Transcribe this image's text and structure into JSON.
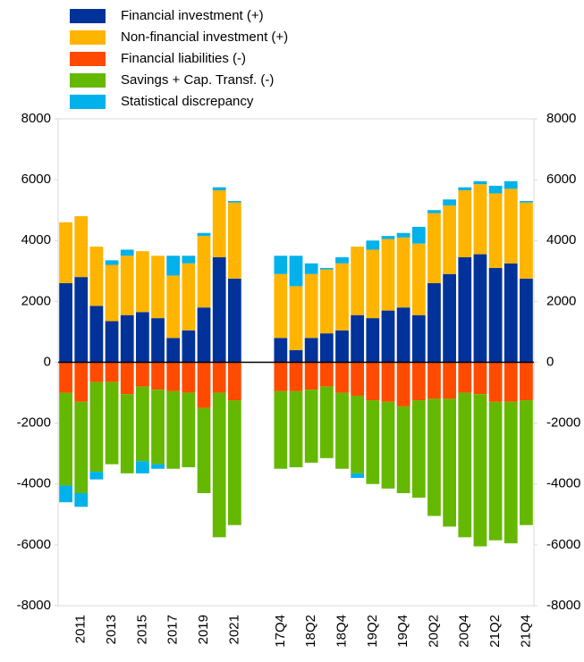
{
  "chart_data": {
    "type": "stacked_bar",
    "categories": [
      null,
      "2011",
      null,
      "2013",
      null,
      "2015",
      null,
      "2017",
      null,
      "2019",
      null,
      "2021",
      null,
      null,
      "17Q4",
      null,
      "18Q2",
      null,
      "18Q4",
      null,
      "19Q2",
      null,
      "19Q4",
      null,
      "20Q2",
      null,
      "20Q4",
      null,
      "21Q2",
      null,
      "21Q4"
    ],
    "series": [
      {
        "name": "Financial investment (+)",
        "color": "#003299",
        "values": [
          2600,
          2800,
          1850,
          1350,
          1550,
          1650,
          1450,
          800,
          1050,
          1800,
          3450,
          2750,
          null,
          null,
          800,
          400,
          800,
          950,
          1050,
          1550,
          1450,
          1700,
          1800,
          1550,
          2600,
          2900,
          3450,
          3550,
          3100,
          3250,
          2750
        ]
      },
      {
        "name": "Non-financial investment (+)",
        "color": "#ffb400",
        "values": [
          2000,
          2000,
          1950,
          1850,
          1950,
          2000,
          2050,
          2050,
          2200,
          2350,
          2200,
          2500,
          null,
          null,
          2100,
          2100,
          2100,
          2100,
          2200,
          2250,
          2250,
          2350,
          2300,
          2350,
          2300,
          2250,
          2200,
          2300,
          2450,
          2450,
          2500
        ]
      },
      {
        "name": "Financial liabilities (-)",
        "color": "#ff4b00",
        "values": [
          -1000,
          -1300,
          -650,
          -650,
          -1050,
          -800,
          -900,
          -950,
          -1000,
          -1500,
          -1000,
          -1250,
          null,
          null,
          -950,
          -950,
          -900,
          -800,
          -1000,
          -1100,
          -1250,
          -1300,
          -1450,
          -1250,
          -1200,
          -1200,
          -1000,
          -1050,
          -1300,
          -1300,
          -1250
        ]
      },
      {
        "name": "Savings + Cap. Transf. (-)",
        "color": "#65b800",
        "values": [
          -3050,
          -3000,
          -2950,
          -2700,
          -2600,
          -2450,
          -2450,
          -2550,
          -2450,
          -2800,
          -4750,
          -4100,
          null,
          null,
          -2550,
          -2500,
          -2400,
          -2350,
          -2500,
          -2550,
          -2750,
          -2850,
          -2850,
          -3200,
          -3850,
          -4200,
          -4750,
          -5000,
          -4550,
          -4650,
          -4100
        ]
      },
      {
        "name": "Statistical discrepancy",
        "color": "#00b1ea",
        "values": [
          -550,
          -450,
          -250,
          150,
          200,
          -400,
          -150,
          650,
          250,
          100,
          100,
          50,
          null,
          null,
          600,
          1000,
          350,
          50,
          200,
          -150,
          300,
          100,
          150,
          550,
          100,
          200,
          100,
          100,
          250,
          250,
          50
        ]
      }
    ],
    "ylim": [
      -8000,
      8000
    ],
    "yticks": [
      -8000,
      -6000,
      -4000,
      -2000,
      0,
      2000,
      4000,
      6000,
      8000
    ],
    "y2lim": [
      -8000,
      8000
    ],
    "y2ticks": [
      -8000,
      -6000,
      -4000,
      -2000,
      0,
      2000,
      4000,
      6000,
      8000
    ],
    "legend": "top-left"
  }
}
